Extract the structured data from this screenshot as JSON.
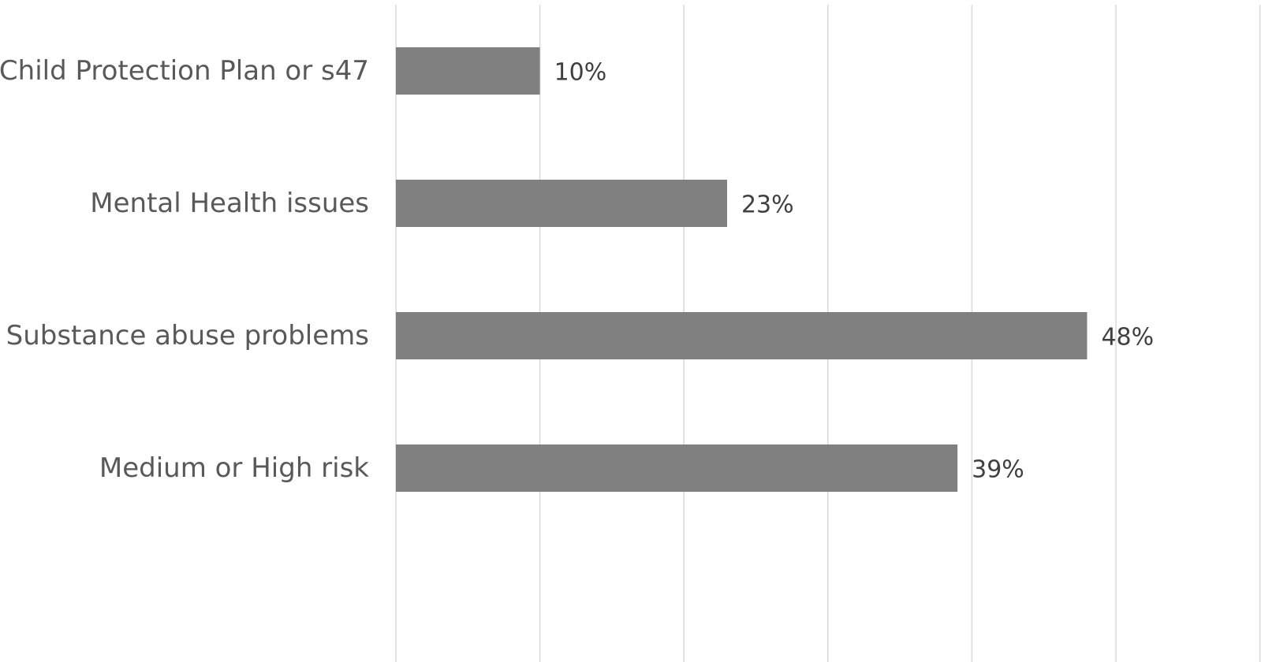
{
  "chart_data": {
    "type": "bar",
    "orientation": "horizontal",
    "categories": [
      "Child Protection Plan or s47",
      "Mental Health issues",
      "Substance abuse problems",
      "Medium or High risk"
    ],
    "values": [
      10,
      23,
      48,
      39
    ],
    "data_labels": [
      "10%",
      "23%",
      "48%",
      "39%"
    ],
    "value_unit": "%",
    "xlim": [
      0,
      60
    ],
    "gridline_step": 10,
    "grid": true,
    "legend": "none",
    "title": "",
    "xlabel": "",
    "ylabel": "",
    "colors": {
      "bar": "#808080",
      "grid": "#d9d9d9",
      "category_text": "#595959",
      "label_text": "#404040"
    }
  }
}
